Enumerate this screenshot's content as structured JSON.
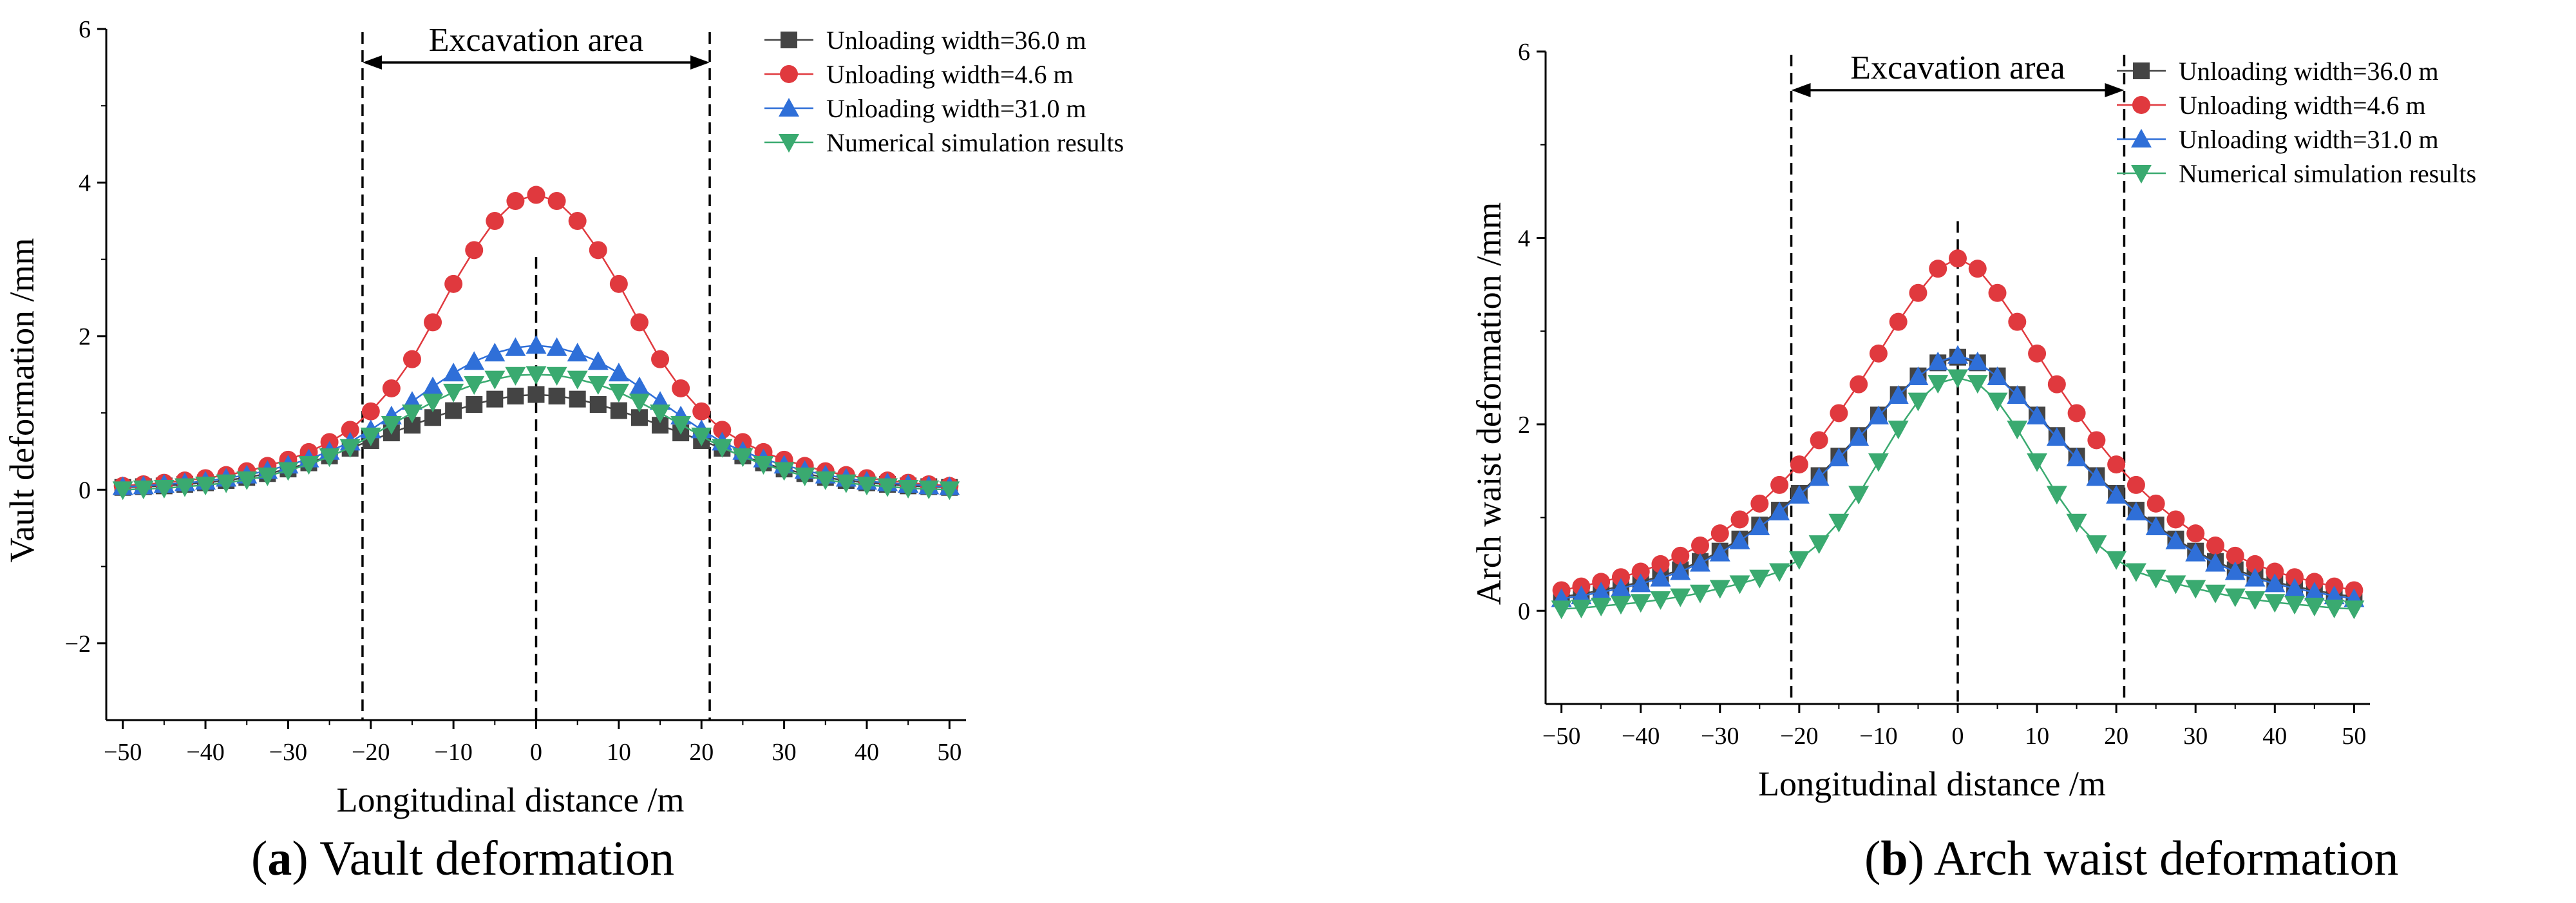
{
  "captions": [
    {
      "label": "a",
      "text": " Vault deformation"
    },
    {
      "label": "b",
      "text": " Arch waist deformation"
    }
  ],
  "colors": {
    "width36": "#444444",
    "width4_6": "#e0393e",
    "width31": "#2f6fd8",
    "numerical": "#3aaa70"
  },
  "chart_data": [
    {
      "type": "line",
      "panel": "a",
      "xlabel": "Longitudinal distance /m",
      "ylabel": "Vault  deformation /mm",
      "xlim": [
        -52,
        52
      ],
      "ylim": [
        -3,
        6
      ],
      "xticks": [
        -50,
        -40,
        -30,
        -20,
        -10,
        0,
        10,
        20,
        30,
        40,
        50
      ],
      "yticks": [
        -2,
        0,
        2,
        4,
        6
      ],
      "annotation": {
        "text": "Excavation area",
        "from": -21,
        "to": 21
      },
      "vlines": [
        -21,
        0,
        21
      ],
      "legend_position": "top-right",
      "x": [
        -50,
        -47.5,
        -45,
        -42.5,
        -40,
        -37.5,
        -35,
        -32.5,
        -30,
        -27.5,
        -25,
        -22.5,
        -20,
        -17.5,
        -15,
        -12.5,
        -10,
        -7.5,
        -5,
        -2.5,
        0,
        2.5,
        5,
        7.5,
        10,
        12.5,
        15,
        17.5,
        20,
        22.5,
        25,
        27.5,
        30,
        32.5,
        35,
        37.5,
        40,
        42.5,
        45,
        47.5,
        50
      ],
      "series": [
        {
          "name": "Unloading width=36.0 m",
          "marker": "square",
          "color": "#444444",
          "values": [
            0.03,
            0.04,
            0.05,
            0.07,
            0.09,
            0.12,
            0.16,
            0.21,
            0.27,
            0.35,
            0.44,
            0.54,
            0.64,
            0.74,
            0.84,
            0.94,
            1.03,
            1.11,
            1.18,
            1.22,
            1.24,
            1.22,
            1.18,
            1.11,
            1.03,
            0.94,
            0.84,
            0.74,
            0.64,
            0.54,
            0.44,
            0.35,
            0.27,
            0.21,
            0.16,
            0.12,
            0.09,
            0.07,
            0.05,
            0.04,
            0.03
          ]
        },
        {
          "name": "Unloading width=4.6 m",
          "marker": "circle",
          "color": "#e0393e",
          "values": [
            0.05,
            0.07,
            0.09,
            0.12,
            0.15,
            0.19,
            0.24,
            0.31,
            0.39,
            0.49,
            0.62,
            0.78,
            1.02,
            1.32,
            1.7,
            2.18,
            2.68,
            3.12,
            3.5,
            3.76,
            3.84,
            3.76,
            3.5,
            3.12,
            2.68,
            2.18,
            1.7,
            1.32,
            1.02,
            0.78,
            0.62,
            0.49,
            0.39,
            0.31,
            0.24,
            0.19,
            0.15,
            0.12,
            0.09,
            0.07,
            0.05
          ]
        },
        {
          "name": "Unloading width=31.0 m",
          "marker": "triangle-up",
          "color": "#2f6fd8",
          "values": [
            0.04,
            0.05,
            0.07,
            0.09,
            0.11,
            0.15,
            0.19,
            0.25,
            0.32,
            0.4,
            0.5,
            0.62,
            0.78,
            0.96,
            1.15,
            1.34,
            1.52,
            1.67,
            1.78,
            1.85,
            1.88,
            1.85,
            1.78,
            1.67,
            1.52,
            1.34,
            1.15,
            0.96,
            0.78,
            0.62,
            0.5,
            0.4,
            0.32,
            0.25,
            0.19,
            0.15,
            0.11,
            0.09,
            0.07,
            0.05,
            0.04
          ]
        },
        {
          "name": "Numerical simulation results",
          "marker": "triangle-down",
          "color": "#3aaa70",
          "values": [
            0.0,
            0.01,
            0.02,
            0.04,
            0.06,
            0.09,
            0.13,
            0.18,
            0.25,
            0.33,
            0.43,
            0.55,
            0.7,
            0.85,
            1.0,
            1.14,
            1.27,
            1.37,
            1.44,
            1.49,
            1.5,
            1.49,
            1.44,
            1.37,
            1.27,
            1.14,
            1.0,
            0.85,
            0.7,
            0.55,
            0.43,
            0.33,
            0.25,
            0.18,
            0.13,
            0.09,
            0.06,
            0.04,
            0.02,
            0.01,
            0.0
          ]
        }
      ]
    },
    {
      "type": "line",
      "panel": "b",
      "xlabel": "Longitudinal distance /m",
      "ylabel": "Arch waist  deformation /mm",
      "xlim": [
        -52,
        52
      ],
      "ylim": [
        -1,
        6
      ],
      "xticks": [
        -50,
        -40,
        -30,
        -20,
        -10,
        0,
        10,
        20,
        30,
        40,
        50
      ],
      "yticks": [
        0,
        2,
        4,
        6
      ],
      "annotation": {
        "text": "Excavation area",
        "from": -21,
        "to": 21
      },
      "vlines": [
        -21,
        0,
        21
      ],
      "legend_position": "top-right",
      "x": [
        -50,
        -47.5,
        -45,
        -42.5,
        -40,
        -37.5,
        -35,
        -32.5,
        -30,
        -27.5,
        -25,
        -22.5,
        -20,
        -17.5,
        -15,
        -12.5,
        -10,
        -7.5,
        -5,
        -2.5,
        0,
        2.5,
        5,
        7.5,
        10,
        12.5,
        15,
        17.5,
        20,
        22.5,
        25,
        27.5,
        30,
        32.5,
        35,
        37.5,
        40,
        42.5,
        45,
        47.5,
        50
      ],
      "series": [
        {
          "name": "Unloading width=36.0 m",
          "marker": "square",
          "color": "#444444",
          "values": [
            0.15,
            0.18,
            0.22,
            0.26,
            0.31,
            0.37,
            0.44,
            0.53,
            0.64,
            0.77,
            0.92,
            1.08,
            1.26,
            1.45,
            1.66,
            1.88,
            2.1,
            2.32,
            2.52,
            2.66,
            2.72,
            2.66,
            2.52,
            2.32,
            2.1,
            1.88,
            1.66,
            1.45,
            1.26,
            1.08,
            0.92,
            0.77,
            0.64,
            0.53,
            0.44,
            0.37,
            0.31,
            0.26,
            0.22,
            0.18,
            0.15
          ]
        },
        {
          "name": "Unloading width=4.6 m",
          "marker": "circle",
          "color": "#e0393e",
          "values": [
            0.22,
            0.26,
            0.31,
            0.36,
            0.42,
            0.5,
            0.59,
            0.7,
            0.83,
            0.98,
            1.15,
            1.35,
            1.57,
            1.83,
            2.12,
            2.43,
            2.76,
            3.1,
            3.41,
            3.67,
            3.78,
            3.67,
            3.41,
            3.1,
            2.76,
            2.43,
            2.12,
            1.83,
            1.57,
            1.35,
            1.15,
            0.98,
            0.83,
            0.7,
            0.59,
            0.5,
            0.42,
            0.36,
            0.31,
            0.26,
            0.22
          ]
        },
        {
          "name": "Unloading width=31.0 m",
          "marker": "triangle-up",
          "color": "#2f6fd8",
          "values": [
            0.13,
            0.16,
            0.2,
            0.24,
            0.29,
            0.35,
            0.42,
            0.51,
            0.62,
            0.75,
            0.9,
            1.06,
            1.24,
            1.43,
            1.64,
            1.86,
            2.09,
            2.31,
            2.51,
            2.67,
            2.74,
            2.67,
            2.51,
            2.31,
            2.09,
            1.86,
            1.64,
            1.43,
            1.24,
            1.06,
            0.9,
            0.75,
            0.62,
            0.51,
            0.42,
            0.35,
            0.29,
            0.24,
            0.2,
            0.16,
            0.13
          ]
        },
        {
          "name": "Numerical simulation results",
          "marker": "triangle-down",
          "color": "#3aaa70",
          "values": [
            0.02,
            0.03,
            0.05,
            0.07,
            0.09,
            0.12,
            0.15,
            0.19,
            0.24,
            0.29,
            0.35,
            0.42,
            0.55,
            0.72,
            0.95,
            1.25,
            1.6,
            1.95,
            2.25,
            2.44,
            2.5,
            2.44,
            2.25,
            1.95,
            1.6,
            1.25,
            0.95,
            0.72,
            0.55,
            0.42,
            0.35,
            0.29,
            0.24,
            0.19,
            0.15,
            0.12,
            0.09,
            0.07,
            0.05,
            0.03,
            0.02
          ]
        }
      ]
    }
  ]
}
